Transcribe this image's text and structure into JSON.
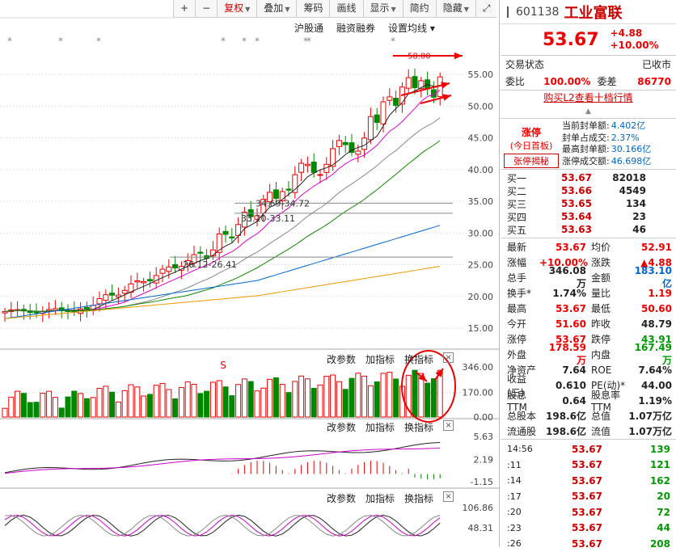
{
  "toolbar": {
    "items": [
      {
        "label": "+",
        "caret": false
      },
      {
        "label": "−",
        "caret": false
      },
      {
        "label": "复权",
        "caret": true,
        "active": true
      },
      {
        "label": "叠加",
        "caret": true
      },
      {
        "label": "筹码",
        "caret": false
      },
      {
        "label": "画线",
        "caret": false
      },
      {
        "label": "显示",
        "caret": true
      },
      {
        "label": "简约",
        "caret": false
      },
      {
        "label": "隐藏",
        "caret": true
      }
    ],
    "expand_icon": "expand-icon"
  },
  "sub_toolbar": [
    "沪股通",
    "融资融券",
    "设置均线 ▾"
  ],
  "main_chart": {
    "price_axis": [
      "55.00",
      "50.00",
      "45.00",
      "40.00",
      "35.00",
      "30.00",
      "25.00",
      "20.00",
      "15.00"
    ],
    "annotations": {
      "high": "58.00",
      "range1": "34.69-34.72",
      "range2": "33.10-33.11",
      "range3": "26.12-26.41",
      "marker": "S"
    }
  },
  "volume_panel": {
    "buttons": [
      "改参数",
      "加指标",
      "换指标"
    ],
    "axis": [
      "346.00",
      "170.00",
      "0.00"
    ]
  },
  "macd_panel": {
    "buttons": [
      "改参数",
      "加指标",
      "换指标"
    ],
    "axis": [
      "5.63",
      "2.19",
      "-1.15"
    ]
  },
  "kdj_panel": {
    "buttons": [
      "改参数",
      "加指标",
      "换指标"
    ],
    "axis": [
      "106.86",
      "48.31"
    ]
  },
  "quote": {
    "code": "601138",
    "name": "工业富联",
    "price": "53.67",
    "change": "+4.88",
    "change_pct": "+10.00%",
    "status_label": "交易状态",
    "status_value": "已收市",
    "weibi_label": "委比",
    "weibi_value": "100.00%",
    "weicha_label": "委差",
    "weicha_value": "86770",
    "l2_link": "购买L2查看十档行情",
    "limit_label": "涨停",
    "limit_sub": "(今日首板)",
    "limit_btn": "张停揭秘",
    "limit_details": [
      {
        "label": "当前封单额:",
        "value": "4.402亿"
      },
      {
        "label": "封单占成交:",
        "value": "2.37%"
      },
      {
        "label": "最高封单额:",
        "value": "30.166亿"
      },
      {
        "label": "涨停成交额:",
        "value": "46.698亿"
      }
    ],
    "order_book": [
      {
        "label": "买一",
        "price": "53.67",
        "vol": "82018"
      },
      {
        "label": "买二",
        "price": "53.66",
        "vol": "4549"
      },
      {
        "label": "买三",
        "price": "53.65",
        "vol": "134"
      },
      {
        "label": "买四",
        "price": "53.64",
        "vol": "23"
      },
      {
        "label": "买五",
        "price": "53.63",
        "vol": "46"
      }
    ],
    "stats": [
      {
        "l1": "最新",
        "v1": "53.67",
        "c1": "red",
        "l2": "均价",
        "v2": "52.91",
        "c2": "red"
      },
      {
        "l1": "涨幅",
        "v1": "+10.00%",
        "c1": "red",
        "l2": "涨跌",
        "v2": "▲4.88",
        "c2": "red"
      },
      {
        "l1": "总手",
        "v1": "346.08万",
        "c1": "",
        "l2": "金额",
        "v2": "183.10亿",
        "c2": "blue"
      },
      {
        "l1": "换手*",
        "v1": "1.74%",
        "c1": "",
        "l2": "量比",
        "v2": "1.19",
        "c2": "red"
      },
      {
        "l1": "最高",
        "v1": "53.67",
        "c1": "red",
        "l2": "最低",
        "v2": "50.60",
        "c2": "red"
      },
      {
        "l1": "今开",
        "v1": "51.60",
        "c1": "red",
        "l2": "昨收",
        "v2": "48.79",
        "c2": ""
      },
      {
        "l1": "涨停",
        "v1": "53.67",
        "c1": "red",
        "l2": "跌停",
        "v2": "43.91",
        "c2": "green"
      },
      {
        "l1": "外盘",
        "v1": "178.59万",
        "c1": "red",
        "l2": "内盘",
        "v2": "167.49万",
        "c2": "green"
      },
      {
        "l1": "净资产",
        "v1": "7.64",
        "c1": "",
        "l2": "ROE",
        "v2": "7.64%",
        "c2": ""
      },
      {
        "l1": "收益(三)",
        "v1": "0.610",
        "c1": "",
        "l2": "PE(动)*",
        "v2": "44.00",
        "c2": ""
      },
      {
        "l1": "股息TTM",
        "v1": "0.64",
        "c1": "",
        "l2": "股息率TTM",
        "v2": "1.19%",
        "c2": ""
      },
      {
        "l1": "总股本",
        "v1": "198.6亿",
        "c1": "",
        "l2": "总值",
        "v2": "1.07万亿",
        "c2": ""
      },
      {
        "l1": "流通股",
        "v1": "198.6亿",
        "c1": "",
        "l2": "流值",
        "v2": "1.07万亿",
        "c2": ""
      }
    ],
    "trades": [
      {
        "t": "14:56",
        "p": "53.67",
        "v": "139"
      },
      {
        "t": ":11",
        "p": "53.67",
        "v": "121"
      },
      {
        "t": ":14",
        "p": "53.67",
        "v": "162"
      },
      {
        "t": ":17",
        "p": "53.67",
        "v": "20"
      },
      {
        "t": ":20",
        "p": "53.67",
        "v": "72"
      },
      {
        "t": ":23",
        "p": "53.67",
        "v": "44"
      },
      {
        "t": ":26",
        "p": "53.67",
        "v": "208"
      }
    ]
  }
}
